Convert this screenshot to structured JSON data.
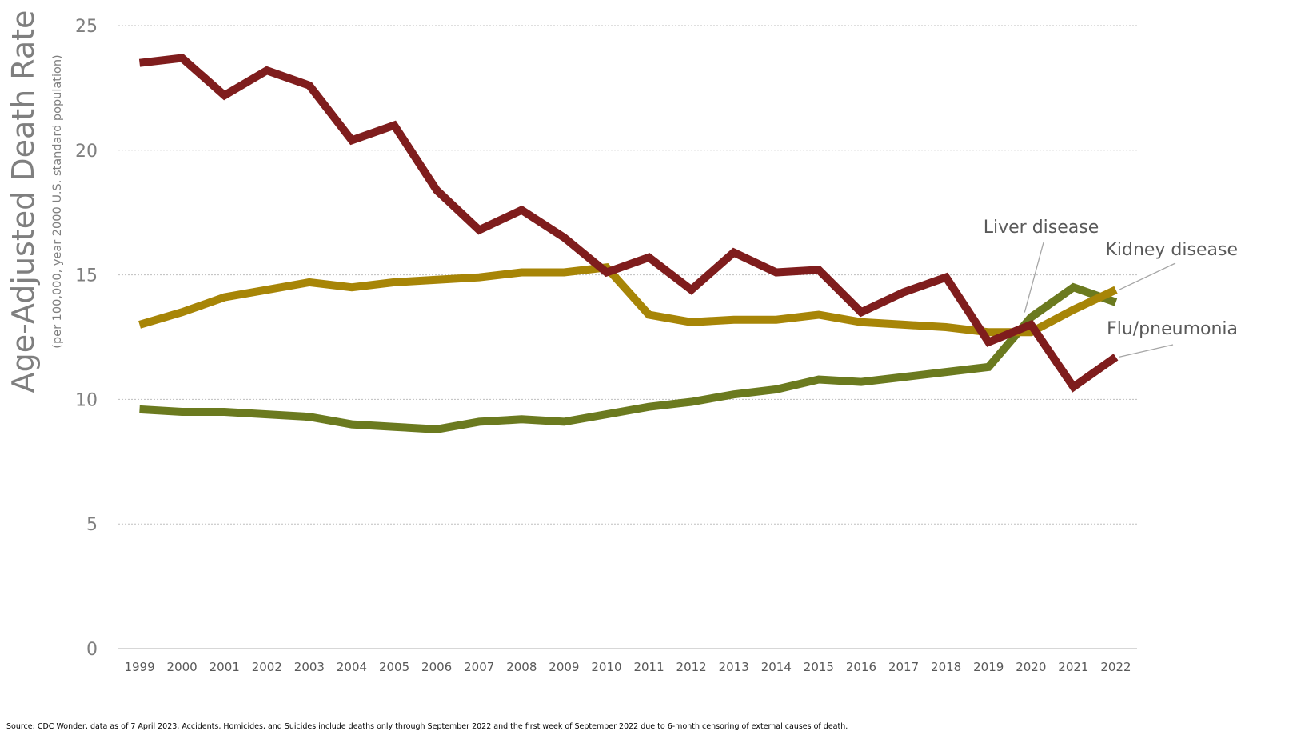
{
  "chart_data": {
    "type": "line",
    "ylabel": "Age-Adjusted Death Rate",
    "ylabel_sub": "(per 100,000, year 2000 U.S. standard population)",
    "ylim": [
      0,
      25
    ],
    "yticks": [
      0,
      5,
      10,
      15,
      20,
      25
    ],
    "grid": "horizontal dotted",
    "categories": [
      "1999",
      "2000",
      "2001",
      "2002",
      "2003",
      "2004",
      "2005",
      "2006",
      "2007",
      "2008",
      "2009",
      "2010",
      "2011",
      "2012",
      "2013",
      "2014",
      "2015",
      "2016",
      "2017",
      "2018",
      "2019",
      "2020",
      "2021",
      "2022"
    ],
    "series": [
      {
        "name": "Flu/pneumonia",
        "color": "#7f1d1d",
        "values": [
          23.5,
          23.7,
          22.2,
          23.2,
          22.6,
          20.4,
          21.0,
          18.4,
          16.8,
          17.6,
          16.5,
          15.1,
          15.7,
          14.4,
          15.9,
          15.1,
          15.2,
          13.5,
          14.3,
          14.9,
          12.3,
          13.0,
          10.5,
          11.7
        ]
      },
      {
        "name": "Kidney disease",
        "color": "#a78507",
        "values": [
          13.0,
          13.5,
          14.1,
          14.4,
          14.7,
          14.5,
          14.7,
          14.8,
          14.9,
          15.1,
          15.1,
          15.3,
          13.4,
          13.1,
          13.2,
          13.2,
          13.4,
          13.1,
          13.0,
          12.9,
          12.7,
          12.7,
          13.6,
          14.4
        ]
      },
      {
        "name": "Liver disease",
        "color": "#6b7a1f",
        "values": [
          9.6,
          9.5,
          9.5,
          9.4,
          9.3,
          9.0,
          8.9,
          8.8,
          9.1,
          9.2,
          9.1,
          9.4,
          9.7,
          9.9,
          10.2,
          10.4,
          10.8,
          10.7,
          10.9,
          11.1,
          11.3,
          13.3,
          14.5,
          13.9
        ]
      }
    ],
    "legend": "inline labels at right end of lines",
    "source": "Source: CDC Wonder, data as of 7 April 2023, Accidents, Homicides, and Suicides include deaths only through September 2022 and the first week of September 2022 due to 6-month censoring of external causes of death."
  }
}
